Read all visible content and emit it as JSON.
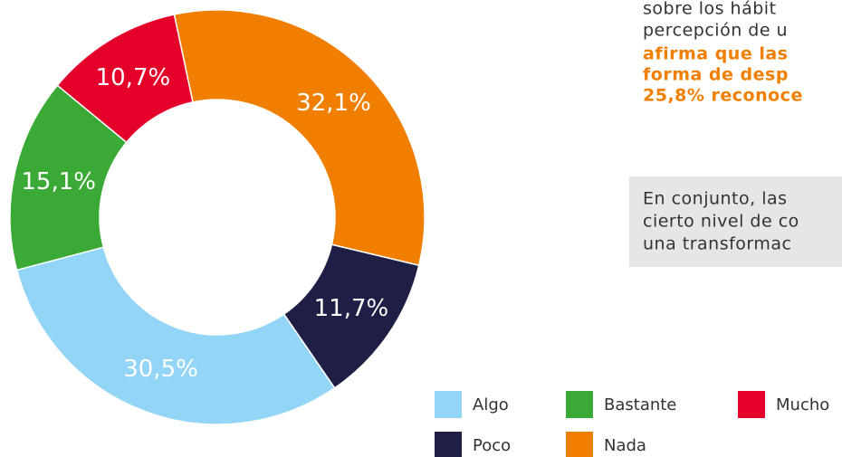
{
  "chart_data": {
    "type": "donut",
    "categories": [
      "Nada",
      "Poco",
      "Algo",
      "Bastante",
      "Mucho"
    ],
    "values": [
      32.1,
      11.7,
      30.5,
      15.1,
      10.7
    ],
    "value_labels": [
      "32,1%",
      "11,7%",
      "30,5%",
      "15,1%",
      "10,7%"
    ],
    "colors": [
      "#f07f00",
      "#1f1f45",
      "#93d5f6",
      "#3aa935",
      "#e4002b"
    ]
  },
  "side_text": {
    "paragraph": [
      "sobre los hábit",
      "percepción de u"
    ],
    "highlight": [
      "afirma que las",
      "forma de desp",
      "25,8% reconoce"
    ],
    "box": [
      "En conjunto, las",
      "cierto nivel de co",
      "una transformac"
    ]
  }
}
